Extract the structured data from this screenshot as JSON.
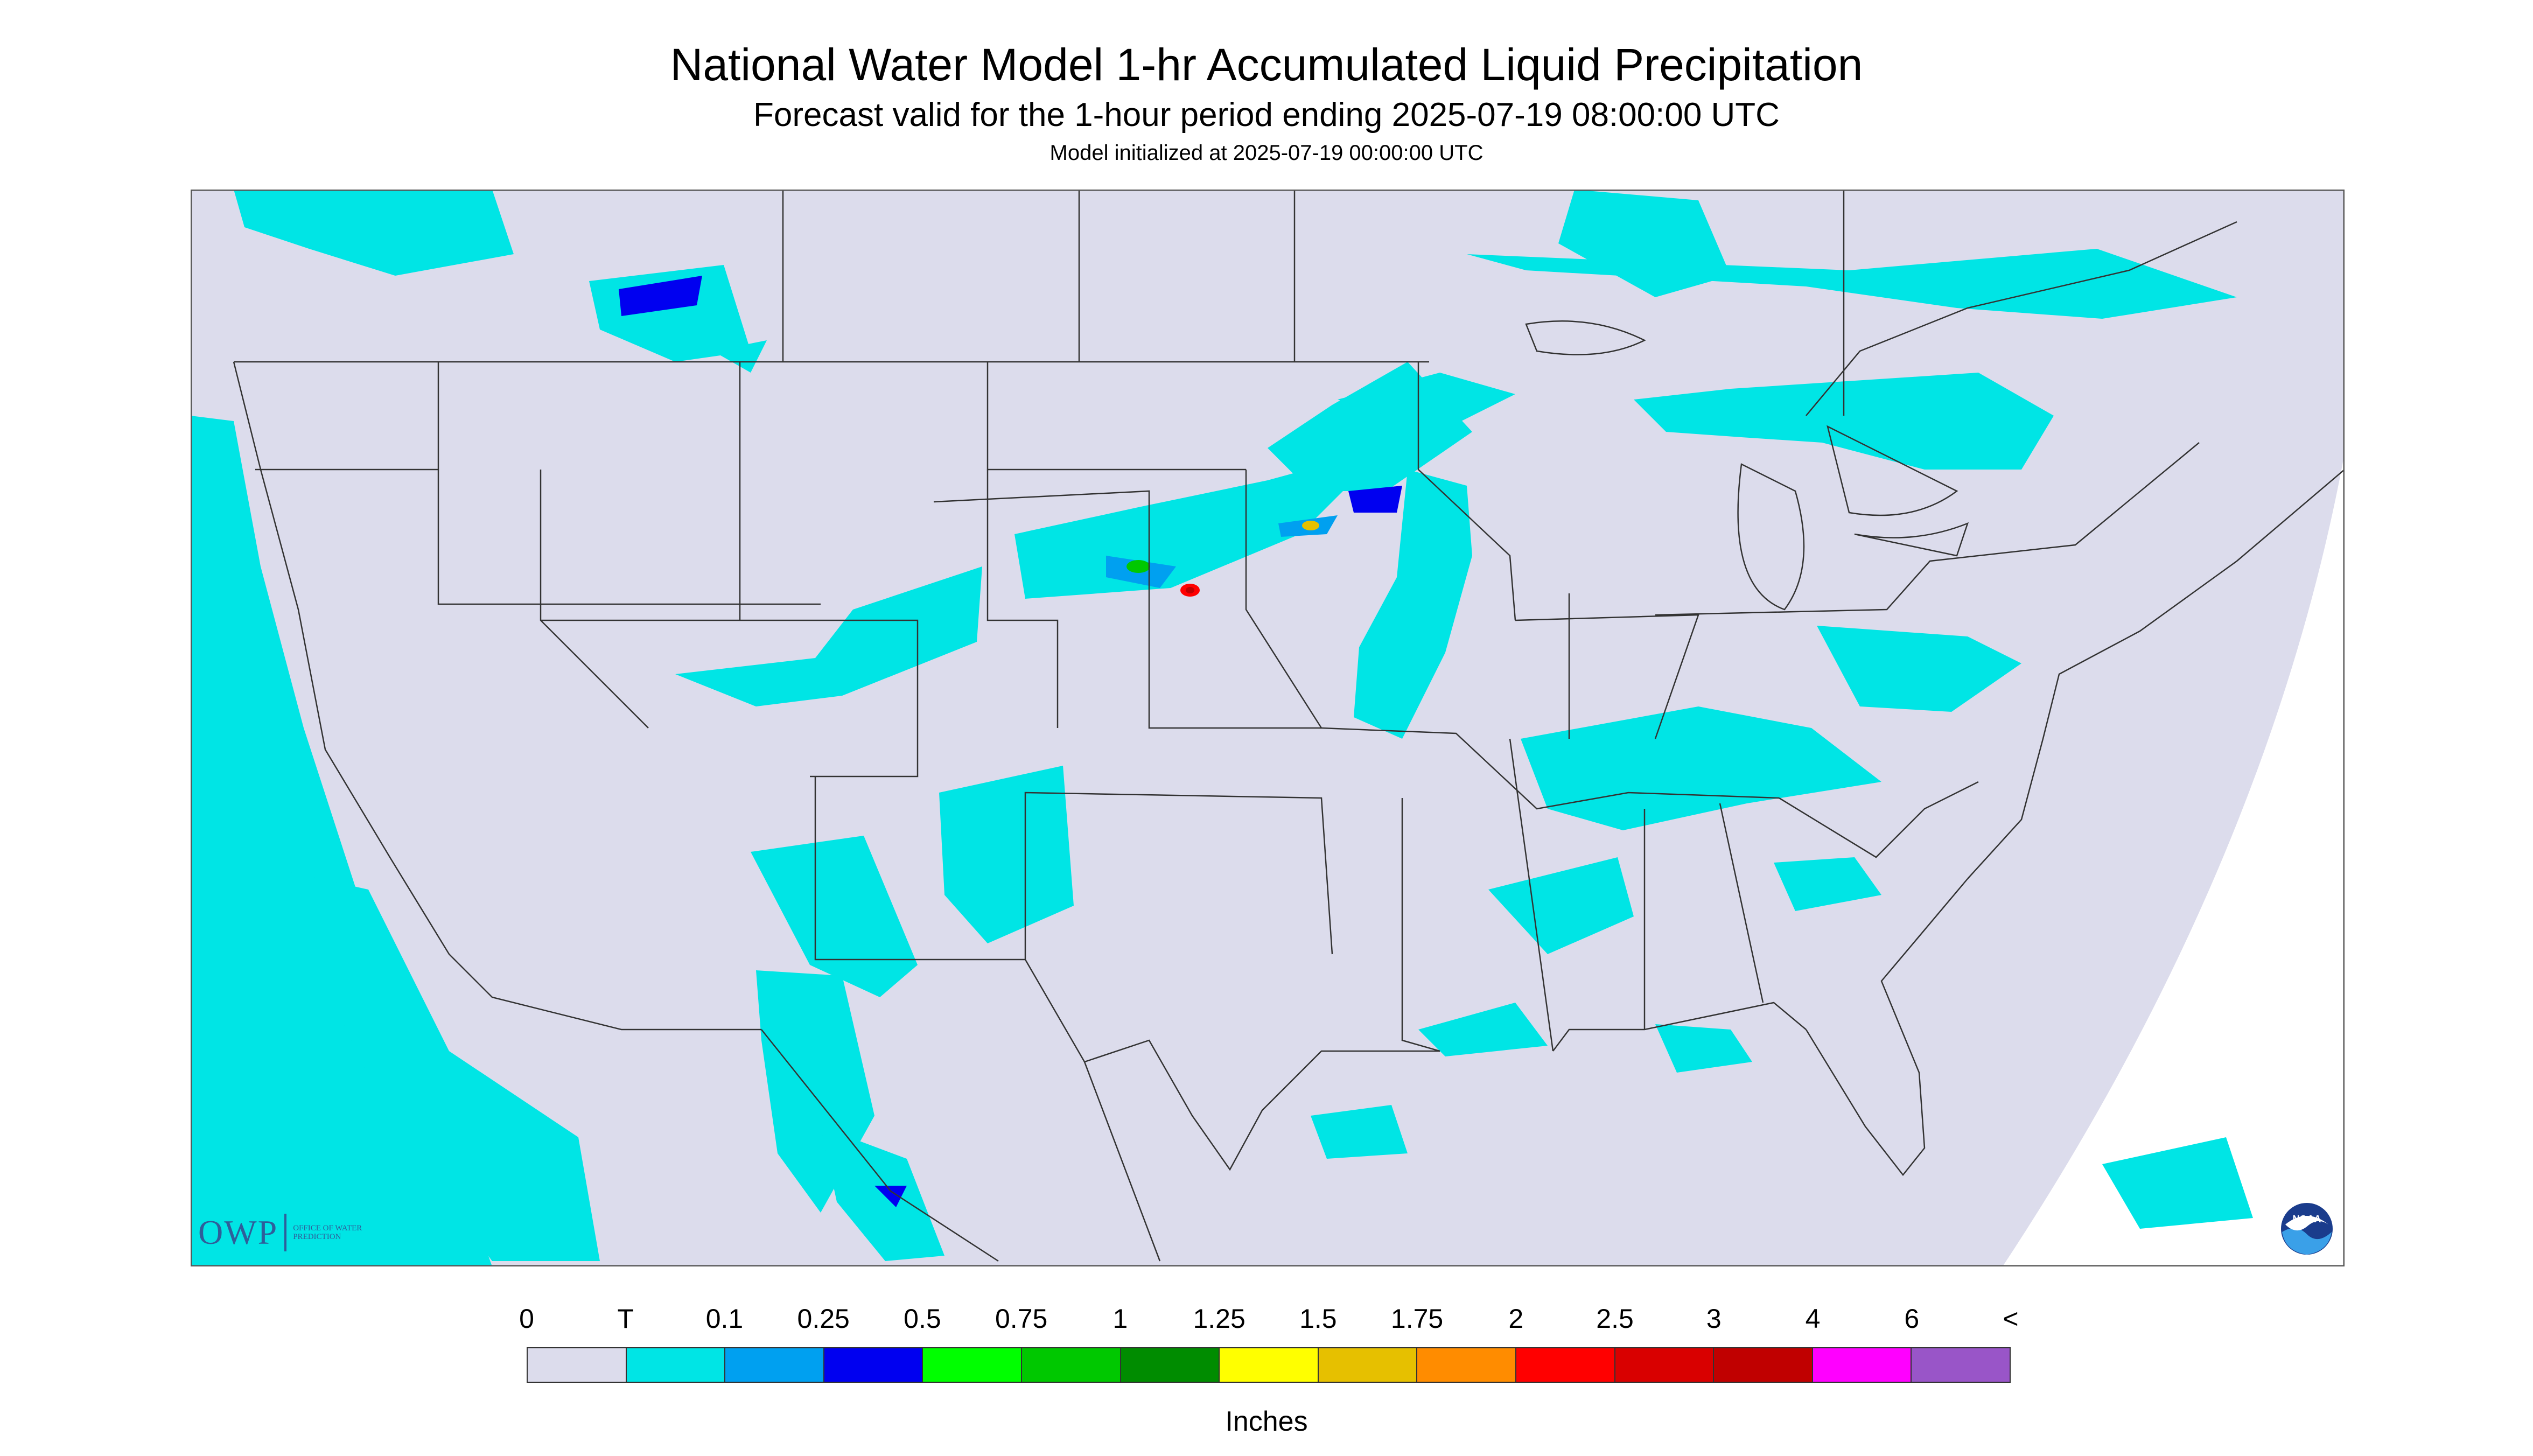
{
  "title": "National Water Model 1-hr Accumulated Liquid Precipitation",
  "subtitle": "Forecast valid for the 1-hour period ending 2025-07-19 08:00:00 UTC",
  "init_line": "Model initialized at 2025-07-19 00:00:00 UTC",
  "map": {
    "region": "Contiguous United States",
    "background_color": "#dcdcec",
    "outside_color": "#ffffff",
    "boundary_color": "#333333"
  },
  "logos": {
    "owp_text": "OWP",
    "owp_subtext": "OFFICE OF WATER PREDICTION",
    "noaa_text": "NOAA"
  },
  "legend": {
    "labels": [
      "0",
      "T",
      "0.1",
      "0.25",
      "0.5",
      "0.75",
      "1",
      "1.25",
      "1.5",
      "1.75",
      "2",
      "2.5",
      "3",
      "4",
      "6",
      "<"
    ],
    "colors": [
      "#dcdcec",
      "#00e5e5",
      "#00a0f0",
      "#0000f0",
      "#00ff00",
      "#00c800",
      "#008c00",
      "#ffff00",
      "#e6c000",
      "#ff8c00",
      "#ff0000",
      "#d90000",
      "#c00000",
      "#ff00ff",
      "#9955c8"
    ],
    "units": "Inches"
  }
}
